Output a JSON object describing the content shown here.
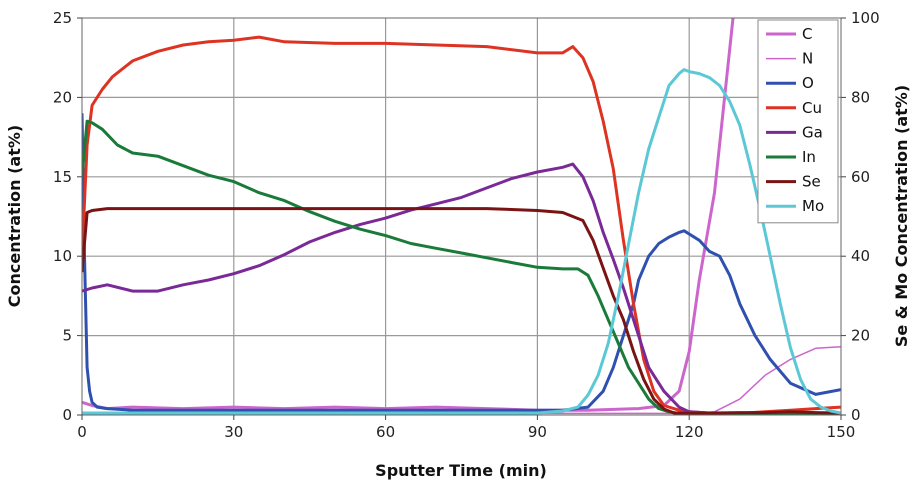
{
  "chart_data": {
    "type": "line",
    "xlabel": "Sputter Time (min)",
    "ylabel": "Concentration (at%)",
    "y2label": "Se & Mo Concentration (at%)",
    "xlim": [
      0,
      150
    ],
    "ylim": [
      0,
      25
    ],
    "y2lim": [
      0,
      100
    ],
    "xticks": [
      0,
      30,
      60,
      90,
      120,
      150
    ],
    "yticks": [
      0,
      5,
      10,
      15,
      20,
      25
    ],
    "y2ticks": [
      0,
      20,
      40,
      60,
      80,
      100
    ],
    "grid": true,
    "legend_position": "top-right",
    "series": [
      {
        "name": "C",
        "axis": "left",
        "color": "#cc66cc",
        "width": 3,
        "x": [
          0,
          2,
          5,
          10,
          20,
          30,
          40,
          50,
          60,
          70,
          80,
          90,
          100,
          110,
          115,
          118,
          120,
          122,
          125,
          127,
          129,
          130
        ],
        "y": [
          0.8,
          0.6,
          0.4,
          0.5,
          0.4,
          0.5,
          0.4,
          0.5,
          0.4,
          0.5,
          0.4,
          0.3,
          0.3,
          0.4,
          0.6,
          1.5,
          4,
          8.5,
          14,
          20,
          26,
          30
        ]
      },
      {
        "name": "N",
        "axis": "left",
        "color": "#cc66cc",
        "width": 1.5,
        "x": [
          0,
          30,
          60,
          90,
          110,
          120,
          125,
          130,
          135,
          140,
          145,
          150
        ],
        "y": [
          0.1,
          0.1,
          0.1,
          0.1,
          0.1,
          0.1,
          0.2,
          1.0,
          2.5,
          3.5,
          4.2,
          4.3
        ]
      },
      {
        "name": "O",
        "axis": "left",
        "color": "#3050b0",
        "width": 3,
        "x": [
          0,
          0.5,
          1,
          1.5,
          2,
          3,
          5,
          10,
          20,
          30,
          40,
          50,
          60,
          70,
          80,
          90,
          95,
          100,
          103,
          105,
          107,
          109,
          110,
          112,
          114,
          116,
          118,
          119,
          120,
          122,
          124,
          126,
          128,
          130,
          133,
          136,
          140,
          145,
          150
        ],
        "y": [
          19,
          10,
          3,
          1.5,
          0.8,
          0.5,
          0.4,
          0.3,
          0.3,
          0.3,
          0.3,
          0.3,
          0.3,
          0.3,
          0.3,
          0.3,
          0.3,
          0.5,
          1.5,
          3,
          5,
          7,
          8.5,
          10,
          10.8,
          11.2,
          11.5,
          11.6,
          11.4,
          11,
          10.3,
          10,
          8.8,
          7,
          5,
          3.5,
          2,
          1.3,
          1.6
        ]
      },
      {
        "name": "Cu",
        "axis": "left",
        "color": "#dd3322",
        "width": 3,
        "x": [
          0,
          1,
          2,
          4,
          6,
          10,
          15,
          20,
          25,
          30,
          35,
          40,
          50,
          60,
          70,
          80,
          90,
          95,
          97,
          99,
          101,
          103,
          105,
          107,
          109,
          111,
          113,
          115,
          118,
          120,
          125,
          130,
          135,
          140,
          145,
          150
        ],
        "y": [
          10,
          17,
          19.5,
          20.5,
          21.3,
          22.3,
          22.9,
          23.3,
          23.5,
          23.6,
          23.8,
          23.5,
          23.4,
          23.4,
          23.3,
          23.2,
          22.8,
          22.8,
          23.2,
          22.5,
          21,
          18.5,
          15.5,
          11,
          7,
          3.5,
          1.5,
          0.6,
          0.3,
          0.2,
          0.1,
          0.1,
          0.2,
          0.3,
          0.4,
          0.5
        ]
      },
      {
        "name": "Ga",
        "axis": "left",
        "color": "#7a2a96",
        "width": 3,
        "x": [
          0,
          2,
          5,
          10,
          15,
          20,
          25,
          30,
          35,
          40,
          45,
          50,
          55,
          60,
          65,
          70,
          75,
          80,
          85,
          90,
          95,
          97,
          99,
          101,
          103,
          105,
          107,
          110,
          112,
          115,
          118,
          120,
          125,
          130,
          140,
          150
        ],
        "y": [
          7.8,
          8,
          8.2,
          7.8,
          7.8,
          8.2,
          8.5,
          8.9,
          9.4,
          10.1,
          10.9,
          11.5,
          12,
          12.4,
          12.9,
          13.3,
          13.7,
          14.3,
          14.9,
          15.3,
          15.6,
          15.8,
          15,
          13.5,
          11.5,
          9.8,
          8,
          5,
          3,
          1.5,
          0.5,
          0.2,
          0.1,
          0.1,
          0.1,
          0.1
        ]
      },
      {
        "name": "In",
        "axis": "left",
        "color": "#1a7a3a",
        "width": 3,
        "x": [
          0,
          1,
          2,
          4,
          7,
          10,
          15,
          20,
          25,
          30,
          35,
          40,
          45,
          50,
          55,
          60,
          65,
          70,
          75,
          80,
          85,
          90,
          95,
          98,
          100,
          102,
          104,
          106,
          108,
          110,
          112,
          114,
          116,
          118,
          120,
          125,
          130,
          140,
          150
        ],
        "y": [
          15,
          18.5,
          18.4,
          18,
          17,
          16.5,
          16.3,
          15.7,
          15.1,
          14.7,
          14.0,
          13.5,
          12.8,
          12.2,
          11.7,
          11.3,
          10.8,
          10.5,
          10.2,
          9.9,
          9.6,
          9.3,
          9.2,
          9.2,
          8.8,
          7.5,
          6,
          4.5,
          3,
          2,
          1,
          0.4,
          0.2,
          0.1,
          0.1,
          0.1,
          0.1,
          0.1,
          0.1
        ]
      },
      {
        "name": "Se",
        "axis": "right",
        "color": "#7a1414",
        "width": 3,
        "x": [
          0,
          1,
          2,
          5,
          10,
          20,
          30,
          40,
          50,
          60,
          70,
          80,
          90,
          95,
          97,
          99,
          101,
          103,
          105,
          107,
          109,
          111,
          113,
          115,
          117,
          120,
          125,
          130,
          135,
          140,
          145,
          150
        ],
        "y": [
          36,
          51,
          51.5,
          52,
          52,
          52,
          52,
          52,
          52,
          52,
          52,
          52,
          51.5,
          51,
          50,
          49,
          44,
          37,
          30,
          24,
          16,
          9,
          4,
          1.5,
          0.5,
          0.4,
          0.5,
          0.6,
          0.6,
          0.8,
          0.6,
          0.5
        ]
      },
      {
        "name": "Mo",
        "axis": "right",
        "color": "#5cc8d6",
        "width": 3,
        "x": [
          0,
          30,
          60,
          90,
          95,
          98,
          100,
          102,
          104,
          106,
          108,
          110,
          112,
          114,
          115,
          116,
          118,
          119,
          120,
          122,
          124,
          126,
          128,
          130,
          132,
          134,
          136,
          138,
          140,
          142,
          144,
          146,
          148,
          150
        ],
        "y": [
          0.5,
          0.5,
          0.5,
          0.5,
          1,
          2,
          5,
          10,
          18,
          30,
          43,
          56,
          67,
          75,
          79,
          83,
          86,
          87,
          86.5,
          86,
          85,
          83,
          79,
          73,
          63,
          52,
          40,
          28,
          17,
          9,
          4,
          2,
          1,
          0.5
        ]
      }
    ]
  }
}
